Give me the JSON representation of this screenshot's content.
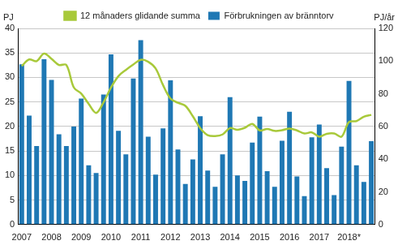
{
  "chart_data": {
    "type": "bar",
    "categories": [
      "2007",
      null,
      null,
      null,
      "2008",
      null,
      null,
      null,
      "2009",
      null,
      null,
      null,
      "2010",
      null,
      null,
      null,
      "2011",
      null,
      null,
      null,
      "2012",
      null,
      null,
      null,
      "2013",
      null,
      null,
      null,
      "2014",
      null,
      null,
      null,
      "2015",
      null,
      null,
      null,
      "2016",
      null,
      null,
      null,
      "2017",
      null,
      null,
      null,
      "2018*",
      null,
      null,
      null
    ],
    "series": [
      {
        "name": "Förbrukningen av bränntorv",
        "type": "bar",
        "color": "#1f78b4",
        "values": [
          32.7,
          22.2,
          16.0,
          33.7,
          29.5,
          18.4,
          16.0,
          20.0,
          25.7,
          12.1,
          10.5,
          26.5,
          34.7,
          19.1,
          14.3,
          29.8,
          37.6,
          17.9,
          10.2,
          19.6,
          29.4,
          15.3,
          8.3,
          13.3,
          22.1,
          11.0,
          7.7,
          14.3,
          26.0,
          10.0,
          8.9,
          16.7,
          22.0,
          10.9,
          7.7,
          17.1,
          23.0,
          9.8,
          5.8,
          17.8,
          20.4,
          11.5,
          6.0,
          15.9,
          29.3,
          12.1,
          8.7,
          17.0
        ]
      },
      {
        "name": "12 månaders glidande summa",
        "type": "line",
        "axis": "y2",
        "color": "#a8c93a",
        "values": [
          97.0,
          101.0,
          100.0,
          104.6,
          101.4,
          97.6,
          97.6,
          83.9,
          80.1,
          73.8,
          68.3,
          74.8,
          83.8,
          90.8,
          94.6,
          97.9,
          100.8,
          99.6,
          95.5,
          85.3,
          77.1,
          74.5,
          72.6,
          66.3,
          59.0,
          54.7,
          54.1,
          55.1,
          59.0,
          58.0,
          59.2,
          61.6,
          57.6,
          58.5,
          57.3,
          57.7,
          58.7,
          57.6,
          55.7,
          56.4,
          53.8,
          55.5,
          55.7,
          53.8,
          62.7,
          63.3,
          66.0,
          67.1
        ]
      }
    ],
    "y_label": "PJ",
    "y2_label": "PJ/år",
    "ylim": [
      0,
      40
    ],
    "yticks": [
      0,
      5,
      10,
      15,
      20,
      25,
      30,
      35,
      40
    ],
    "y2lim": [
      0,
      120
    ],
    "y2ticks": [
      0,
      20,
      40,
      60,
      80,
      100,
      120
    ],
    "grid": true,
    "legend": "top"
  }
}
